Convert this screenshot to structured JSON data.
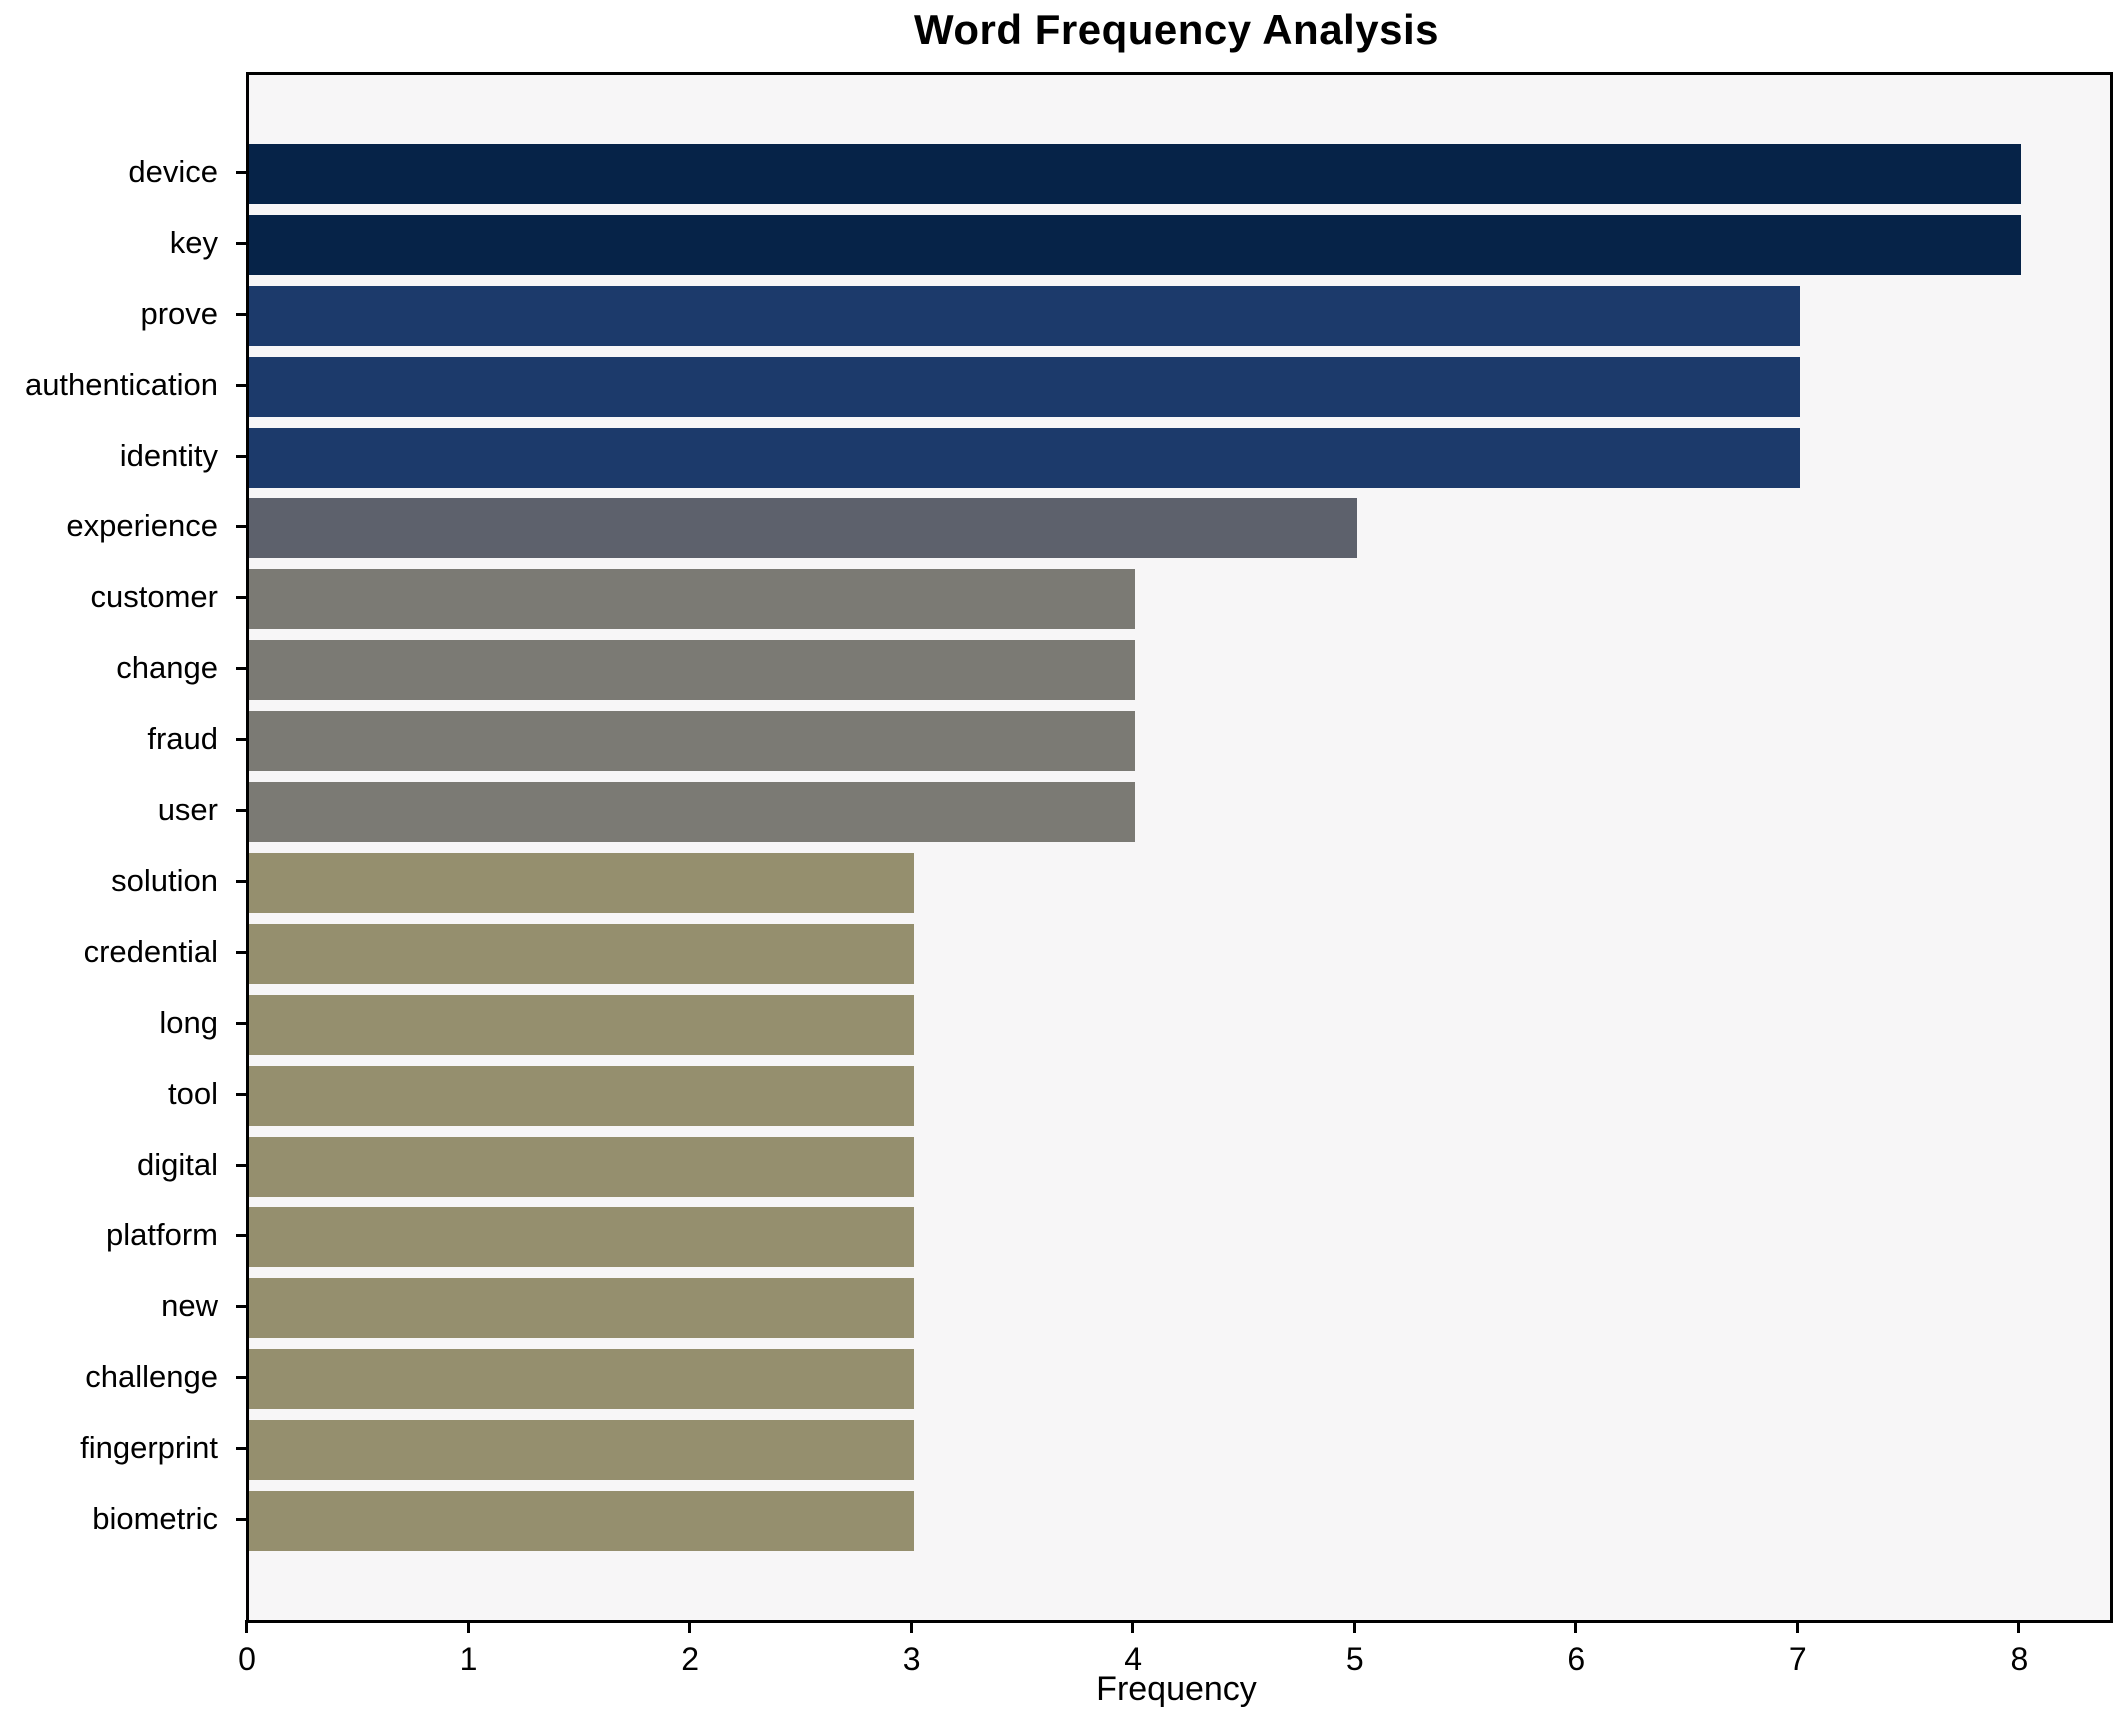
{
  "chart_data": {
    "type": "bar",
    "orientation": "horizontal",
    "title": "Word Frequency Analysis",
    "xlabel": "Frequency",
    "ylabel": "",
    "categories": [
      "device",
      "key",
      "prove",
      "authentication",
      "identity",
      "experience",
      "customer",
      "change",
      "fraud",
      "user",
      "solution",
      "credential",
      "long",
      "tool",
      "digital",
      "platform",
      "new",
      "challenge",
      "fingerprint",
      "biometric"
    ],
    "values": [
      8,
      8,
      7,
      7,
      7,
      5,
      4,
      4,
      4,
      4,
      3,
      3,
      3,
      3,
      3,
      3,
      3,
      3,
      3,
      3
    ],
    "bar_colors": [
      "#062348",
      "#062348",
      "#1c3a6b",
      "#1c3a6b",
      "#1c3a6b",
      "#5d616c",
      "#7b7a74",
      "#7b7a74",
      "#7b7a74",
      "#7b7a74",
      "#958f6e",
      "#958f6e",
      "#958f6e",
      "#958f6e",
      "#958f6e",
      "#958f6e",
      "#958f6e",
      "#958f6e",
      "#958f6e",
      "#958f6e"
    ],
    "value_color_map": {
      "8": "#062348",
      "7": "#1c3a6b",
      "5": "#5d616c",
      "4": "#7b7a74",
      "3": "#958f6e"
    },
    "xlim": [
      0,
      8.4
    ],
    "xticks": [
      0,
      1,
      2,
      3,
      4,
      5,
      6,
      7,
      8
    ],
    "grid": false,
    "legend": "none"
  },
  "colors": {
    "figure_bg": "#ffffff",
    "plot_bg": "#f7f6f7",
    "spine": "#000000",
    "text": "#000000"
  }
}
